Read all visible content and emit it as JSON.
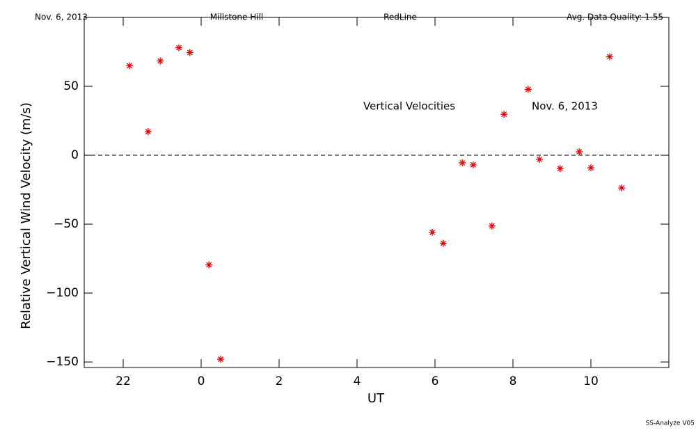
{
  "chart_data": {
    "type": "scatter",
    "header": [
      "Nov. 6, 2013",
      "Millstone Hill",
      "RedLine",
      "Avg. Data Quality: 1.55"
    ],
    "annotations": [
      "Vertical Velocities",
      "Nov. 6, 2013"
    ],
    "y_label": "Relative Vertical Wind Velocity (m/s)",
    "x_label": "UT",
    "footer": "SS-Analyze V05",
    "color": "#e00000",
    "reference_line": 0,
    "x": [
      -1.84,
      -1.36,
      -1.05,
      -0.57,
      -0.29,
      0.2,
      0.5,
      5.93,
      6.21,
      6.7,
      6.98,
      7.46,
      7.77,
      8.39,
      8.68,
      9.21,
      9.7,
      10.0,
      10.48,
      10.79
    ],
    "values": [
      64.9,
      17.1,
      68.4,
      78,
      74.5,
      -79.5,
      -148,
      -55.9,
      -63.9,
      -5.5,
      -7,
      -51.3,
      29.7,
      47.8,
      -3,
      -9.6,
      2.5,
      -9.1,
      71.5,
      -23.7
    ],
    "xlim": [
      -3,
      12
    ],
    "xticks": [
      {
        "value": -2,
        "label": "22"
      },
      0,
      2,
      4,
      6,
      8,
      10
    ],
    "ylim": [
      -154,
      100
    ],
    "yticks": [
      {
        "value": -150,
        "label": "−150"
      },
      {
        "value": -100,
        "label": "−100"
      },
      {
        "value": -50,
        "label": "−50"
      },
      0,
      50
    ]
  }
}
